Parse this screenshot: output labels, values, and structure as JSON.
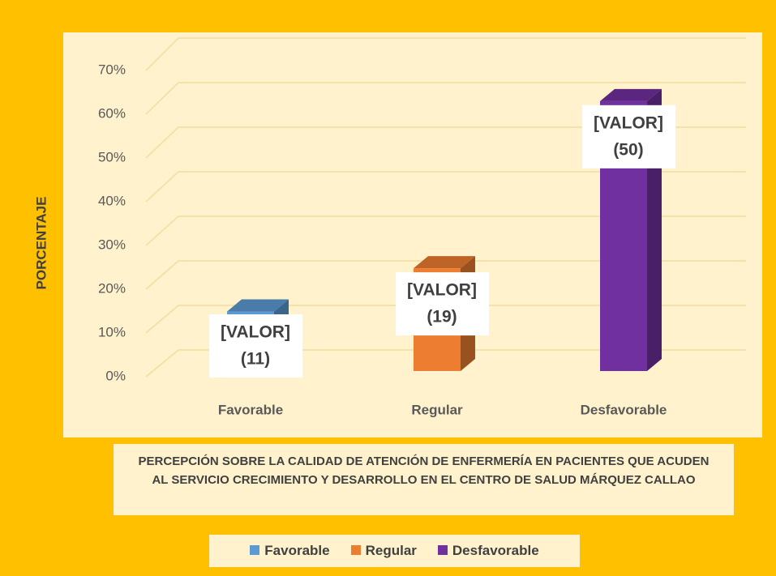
{
  "chart_data": {
    "type": "bar3d",
    "title": "PERCEPCIÓN SOBRE LA CALIDAD DE ATENCIÓN DE ENFERMERÍA EN PACIENTES QUE ACUDEN AL SERVICIO CRECIMIENTO Y DESARROLLO EN EL CENTRO DE SALUD MÁRQUEZ CALLAO",
    "y_label": "PORCENTAJE",
    "categories": [
      "Favorable",
      "Regular",
      "Desfavorable"
    ],
    "values": [
      13.6,
      23.5,
      61.7
    ],
    "colors": [
      "#5B9BD5",
      "#ED7D31",
      "#7030A0"
    ],
    "data_labels": [
      [
        "[VALOR]",
        "(11)"
      ],
      [
        "[VALOR]",
        "(19)"
      ],
      [
        "[VALOR]",
        "(50)"
      ]
    ],
    "ylim": [
      0,
      70
    ],
    "yticks": [
      {
        "value": 0,
        "label": "0%"
      },
      {
        "value": 10,
        "label": "10%"
      },
      {
        "value": 20,
        "label": "20%"
      },
      {
        "value": 30,
        "label": "30%"
      },
      {
        "value": 40,
        "label": "40%"
      },
      {
        "value": 50,
        "label": "50%"
      },
      {
        "value": 60,
        "label": "60%"
      },
      {
        "value": 70,
        "label": "70%"
      }
    ],
    "grid": true,
    "legend": "bottom"
  }
}
